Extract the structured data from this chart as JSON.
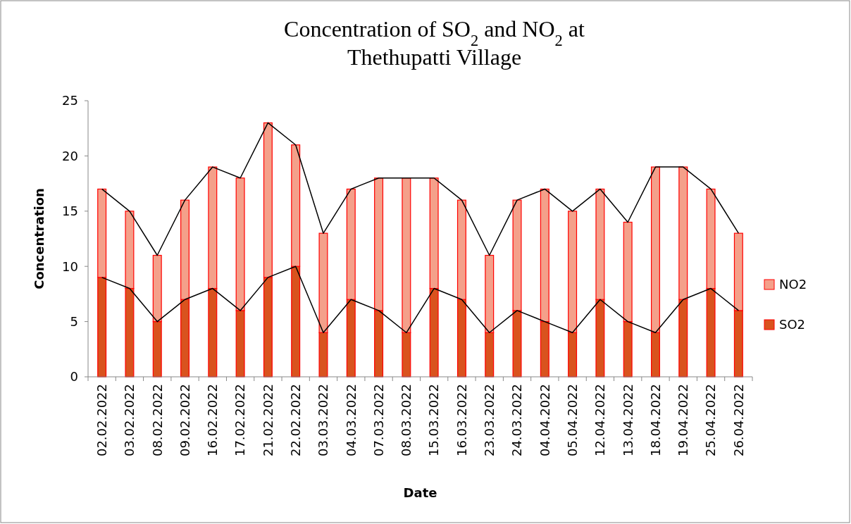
{
  "chart_data": {
    "type": "bar",
    "title": "Concentration of SO$_{2}$ and NO$_{2}$ at\nThethupatti Village",
    "xlabel": "Date",
    "ylabel": "Concentration",
    "categories": [
      "02.02.2022",
      "03.02.2022",
      "08.02.2022",
      "09.02.2022",
      "16.02.2022",
      "17.02.2022",
      "21.02.2022",
      "22.02.2022",
      "03.03.2022",
      "04.03.2022",
      "07.03.2022",
      "08.03.2022",
      "15.03.2022",
      "16.03.2022",
      "23.03.2022",
      "24.03.2022",
      "04.04.2022",
      "05.04.2022",
      "12.04.2022",
      "13.04.2022",
      "18.04.2022",
      "19.04.2022",
      "25.04.2022",
      "26.04.2022"
    ],
    "stacked": true,
    "legend": "right",
    "grid": false,
    "ylim": [
      0,
      25
    ],
    "yticks": [
      0,
      5,
      10,
      15,
      20,
      25
    ],
    "series": [
      {
        "name": "SO2",
        "color": "#d9531e",
        "values": [
          9,
          8,
          5,
          7,
          8,
          6,
          9,
          10,
          4,
          7,
          6,
          4,
          8,
          7,
          4,
          6,
          5,
          4,
          7,
          5,
          4,
          7,
          8,
          6
        ]
      },
      {
        "name": "NO2",
        "color": "#f4a08a",
        "values": [
          8,
          7,
          6,
          9,
          11,
          12,
          14,
          11,
          9,
          10,
          12,
          14,
          10,
          9,
          7,
          10,
          12,
          11,
          10,
          9,
          15,
          12,
          9,
          7
        ]
      },
      {
        "type": "line",
        "color": "#000000",
        "marker": "none",
        "values": [
          9,
          8,
          5,
          7,
          8,
          6,
          9,
          10,
          4,
          7,
          6,
          4,
          8,
          7,
          4,
          6,
          5,
          4,
          7,
          5,
          4,
          7,
          8,
          6
        ]
      },
      {
        "type": "line",
        "color": "#000000",
        "marker": "none",
        "values": [
          17,
          15,
          11,
          16,
          19,
          18,
          23,
          21,
          13,
          17,
          18,
          18,
          18,
          16,
          11,
          16,
          17,
          15,
          17,
          14,
          19,
          19,
          17,
          13
        ]
      }
    ]
  }
}
